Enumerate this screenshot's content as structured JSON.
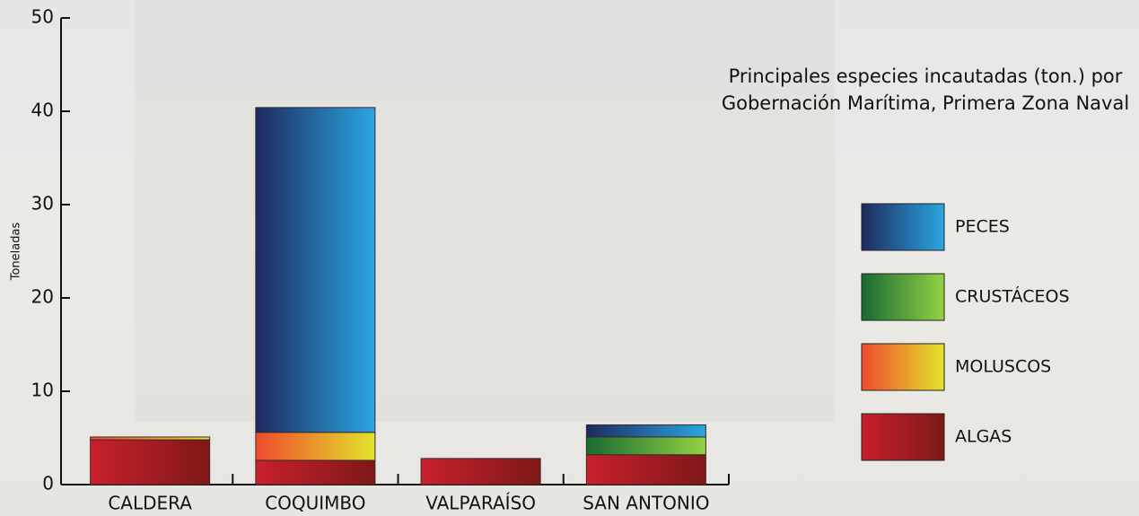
{
  "chart_data": {
    "type": "stacked_bar",
    "title": "Principales especies incautadas (ton.) por Gobernación Marítima, Primera Zona Naval",
    "y_label": "Toneladas",
    "categories": [
      "CALDERA",
      "COQUIMBO",
      "VALPARAÍSO",
      "SAN ANTONIO"
    ],
    "series": [
      {
        "name": "ALGAS",
        "color": [
          "#c8202c",
          "#7e1818"
        ],
        "values": [
          4.8,
          2.6,
          2.8,
          3.2
        ]
      },
      {
        "name": "MOLUSCOS",
        "color": [
          "#f04a2e",
          "#e2e42c"
        ],
        "values": [
          0.3,
          3.0,
          null,
          null
        ]
      },
      {
        "name": "CRUSTÁCEOS",
        "color": [
          "#176a32",
          "#94d244"
        ],
        "values": [
          null,
          null,
          null,
          1.9
        ]
      },
      {
        "name": "PECES",
        "color": [
          "#1e2a5e",
          "#2aa6e2"
        ],
        "values": [
          null,
          34.8,
          null,
          1.3
        ]
      }
    ],
    "ylim": [
      0,
      50
    ],
    "yticks": [
      0,
      10,
      20,
      30,
      40,
      50
    ],
    "legend": "right"
  }
}
